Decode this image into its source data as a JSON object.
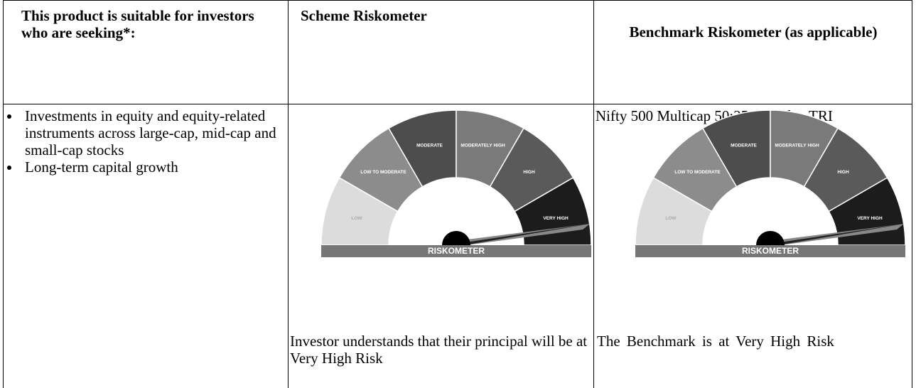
{
  "header": {
    "col1": "This product is suitable for investors who are seeking*:",
    "col2": "Scheme Riskometer",
    "col3": "Benchmark Riskometer (as applicable)"
  },
  "suitability": [
    "Investments in equity and equity-related instruments across large-cap, mid-cap and small-cap stocks",
    "Long-term capital growth"
  ],
  "benchmark": "Nifty 500 Multicap 50:25:25 Index TRI",
  "riskometer": {
    "levels": [
      "LOW",
      "LOW TO MODERATE",
      "MODERATE",
      "MODERATELY HIGH",
      "HIGH",
      "VERY HIGH"
    ],
    "label": "RISKOMETER"
  },
  "scheme_caption": "Investor understands that their principal will be at Very High Risk",
  "benchmark_caption": "The Benchmark is at Very High Risk"
}
